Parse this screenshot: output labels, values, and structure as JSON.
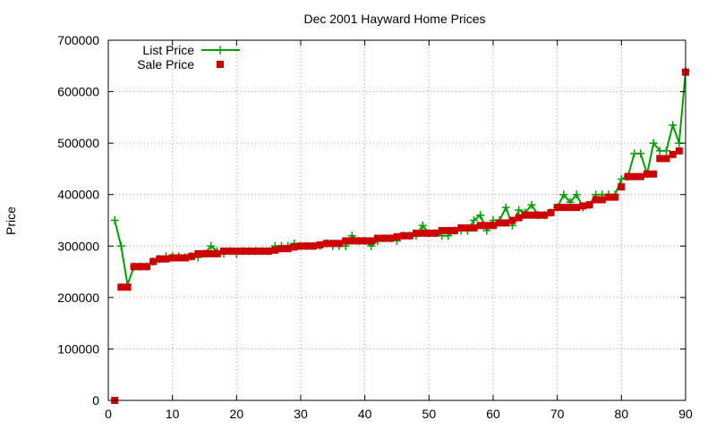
{
  "chart_data": {
    "type": "line",
    "title": "Dec 2001 Hayward Home Prices",
    "xlabel": "",
    "ylabel": "Price",
    "xlim": [
      0,
      90
    ],
    "ylim": [
      0,
      700000
    ],
    "x_ticks": [
      0,
      10,
      20,
      30,
      40,
      50,
      60,
      70,
      80,
      90
    ],
    "x_tick_labels": [
      "0",
      "10",
      "20",
      "30",
      "40",
      "50",
      "60",
      "70",
      "80",
      "90"
    ],
    "y_ticks": [
      0,
      100000,
      200000,
      300000,
      400000,
      500000,
      600000,
      700000
    ],
    "y_tick_labels": [
      "0",
      "100000",
      "200000",
      "300000",
      "400000",
      "500000",
      "600000",
      "700000"
    ],
    "grid": true,
    "legend_position": "top-left",
    "series": [
      {
        "name": "List Price",
        "style": "lines+plus-markers",
        "color": "#00a000",
        "x": [
          1,
          2,
          3,
          4,
          5,
          6,
          7,
          8,
          9,
          10,
          11,
          12,
          13,
          14,
          15,
          16,
          17,
          18,
          19,
          20,
          21,
          22,
          23,
          24,
          25,
          26,
          27,
          28,
          29,
          30,
          31,
          32,
          33,
          34,
          35,
          36,
          37,
          38,
          39,
          40,
          41,
          42,
          43,
          44,
          45,
          46,
          47,
          48,
          49,
          50,
          51,
          52,
          53,
          54,
          55,
          56,
          57,
          58,
          59,
          60,
          61,
          62,
          63,
          64,
          65,
          66,
          67,
          68,
          69,
          70,
          71,
          72,
          73,
          74,
          75,
          76,
          77,
          78,
          79,
          80,
          81,
          82,
          83,
          84,
          85,
          86,
          87,
          88,
          89,
          90
        ],
        "y": [
          350000,
          300000,
          225000,
          260000,
          260000,
          260000,
          270000,
          275000,
          280000,
          280000,
          280000,
          278000,
          280000,
          278000,
          285000,
          300000,
          290000,
          285000,
          290000,
          285000,
          290000,
          290000,
          290000,
          290000,
          290000,
          300000,
          300000,
          300000,
          305000,
          300000,
          300000,
          300000,
          300000,
          305000,
          300000,
          300000,
          300000,
          320000,
          310000,
          310000,
          300000,
          310000,
          315000,
          315000,
          310000,
          320000,
          320000,
          320000,
          340000,
          325000,
          325000,
          320000,
          320000,
          330000,
          330000,
          330000,
          350000,
          360000,
          330000,
          350000,
          350000,
          375000,
          340000,
          370000,
          365000,
          380000,
          360000,
          360000,
          365000,
          375000,
          400000,
          385000,
          400000,
          375000,
          380000,
          400000,
          400000,
          400000,
          400000,
          430000,
          435000,
          480000,
          480000,
          440000,
          500000,
          485000,
          485000,
          535000,
          500000,
          640000
        ]
      },
      {
        "name": "Sale Price",
        "style": "square-markers",
        "color": "#cc0000",
        "x": [
          1,
          2,
          3,
          4,
          5,
          6,
          7,
          8,
          9,
          10,
          11,
          12,
          13,
          14,
          15,
          16,
          17,
          18,
          19,
          20,
          21,
          22,
          23,
          24,
          25,
          26,
          27,
          28,
          29,
          30,
          31,
          32,
          33,
          34,
          35,
          36,
          37,
          38,
          39,
          40,
          41,
          42,
          43,
          44,
          45,
          46,
          47,
          48,
          49,
          50,
          51,
          52,
          53,
          54,
          55,
          56,
          57,
          58,
          59,
          60,
          61,
          62,
          63,
          64,
          65,
          66,
          67,
          68,
          69,
          70,
          71,
          72,
          73,
          74,
          75,
          76,
          77,
          78,
          79,
          80,
          81,
          82,
          83,
          84,
          85,
          86,
          87,
          88,
          89,
          90
        ],
        "y": [
          0,
          220000,
          220000,
          260000,
          260000,
          260000,
          270000,
          275000,
          275000,
          277000,
          277000,
          277000,
          280000,
          285000,
          285000,
          285000,
          285000,
          290000,
          290000,
          290000,
          290000,
          290000,
          290000,
          290000,
          290000,
          292000,
          295000,
          295000,
          298000,
          300000,
          300000,
          300000,
          302000,
          305000,
          305000,
          305000,
          310000,
          310000,
          310000,
          310000,
          310000,
          315000,
          315000,
          315000,
          318000,
          320000,
          320000,
          325000,
          325000,
          325000,
          325000,
          330000,
          330000,
          330000,
          335000,
          335000,
          335000,
          340000,
          340000,
          340000,
          345000,
          345000,
          350000,
          355000,
          360000,
          360000,
          360000,
          360000,
          365000,
          375000,
          375000,
          375000,
          375000,
          378000,
          380000,
          390000,
          390000,
          395000,
          395000,
          415000,
          435000,
          435000,
          435000,
          440000,
          440000,
          470000,
          470000,
          478000,
          485000,
          638000
        ]
      }
    ]
  }
}
